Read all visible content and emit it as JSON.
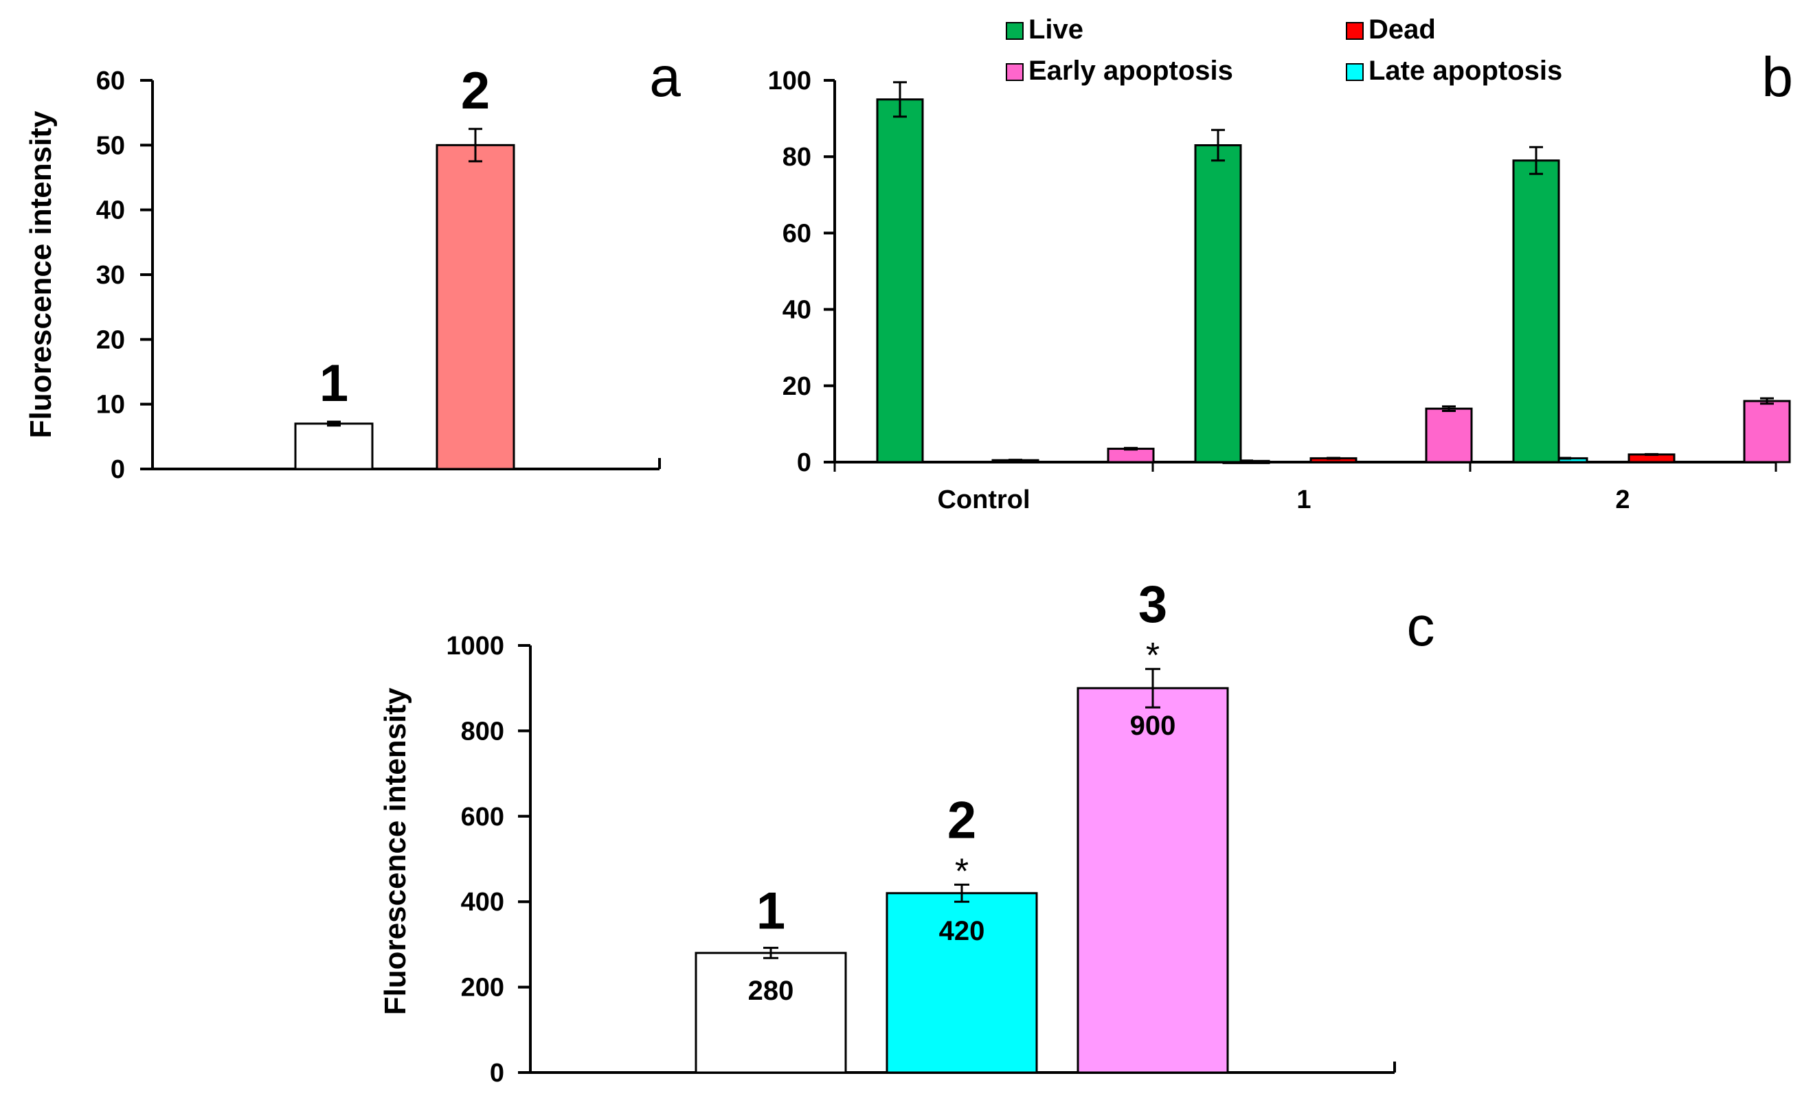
{
  "chart_data": [
    {
      "panel": "a",
      "type": "bar",
      "title": "",
      "ylabel": "Fluorescence intensity",
      "xlabel": "",
      "ylim": [
        0,
        60
      ],
      "yticks": [
        "0",
        "10",
        "20",
        "30",
        "40",
        "50",
        "60"
      ],
      "categories": [
        "1",
        "2"
      ],
      "values": [
        7,
        50
      ],
      "errors": [
        0.3,
        2.5
      ],
      "colors": [
        "#ffffff",
        "#ff8080"
      ]
    },
    {
      "panel": "b",
      "type": "bar",
      "title": "",
      "ylabel": "",
      "xlabel": "",
      "ylim": [
        0,
        100
      ],
      "yticks": [
        "0",
        "20",
        "40",
        "60",
        "80",
        "100"
      ],
      "categories": [
        "Control",
        "1",
        "2"
      ],
      "legend_position": "top",
      "series": [
        {
          "name": "Live",
          "color": "#00b050",
          "values": [
            95,
            83,
            79
          ],
          "errors": [
            4.5,
            4,
            3.5
          ]
        },
        {
          "name": "Dead",
          "color": "#ff0000",
          "values": [
            0.5,
            1,
            2
          ],
          "errors": [
            0.1,
            0.1,
            0.1
          ]
        },
        {
          "name": "Early apoptosis",
          "color": "#ff66cc",
          "values": [
            3.5,
            14,
            16
          ],
          "errors": [
            0.2,
            0.6,
            0.7
          ]
        },
        {
          "name": "Late apoptosis",
          "color": "#00ffff",
          "values": [
            0.3,
            1,
            3
          ],
          "errors": [
            0.1,
            0.1,
            0.1
          ]
        }
      ]
    },
    {
      "panel": "c",
      "type": "bar",
      "title": "",
      "ylabel": "Fluorescence intensity",
      "xlabel": "",
      "ylim": [
        0,
        1000
      ],
      "yticks": [
        "0",
        "200",
        "400",
        "600",
        "800",
        "1000"
      ],
      "categories": [
        "1",
        "2",
        "3"
      ],
      "values": [
        280,
        420,
        900
      ],
      "value_labels": [
        "280",
        "420",
        "900"
      ],
      "errors": [
        12,
        20,
        45
      ],
      "significance": [
        "",
        "*",
        "*"
      ],
      "colors": [
        "#ffffff",
        "#00ffff",
        "#ff99ff"
      ]
    }
  ]
}
